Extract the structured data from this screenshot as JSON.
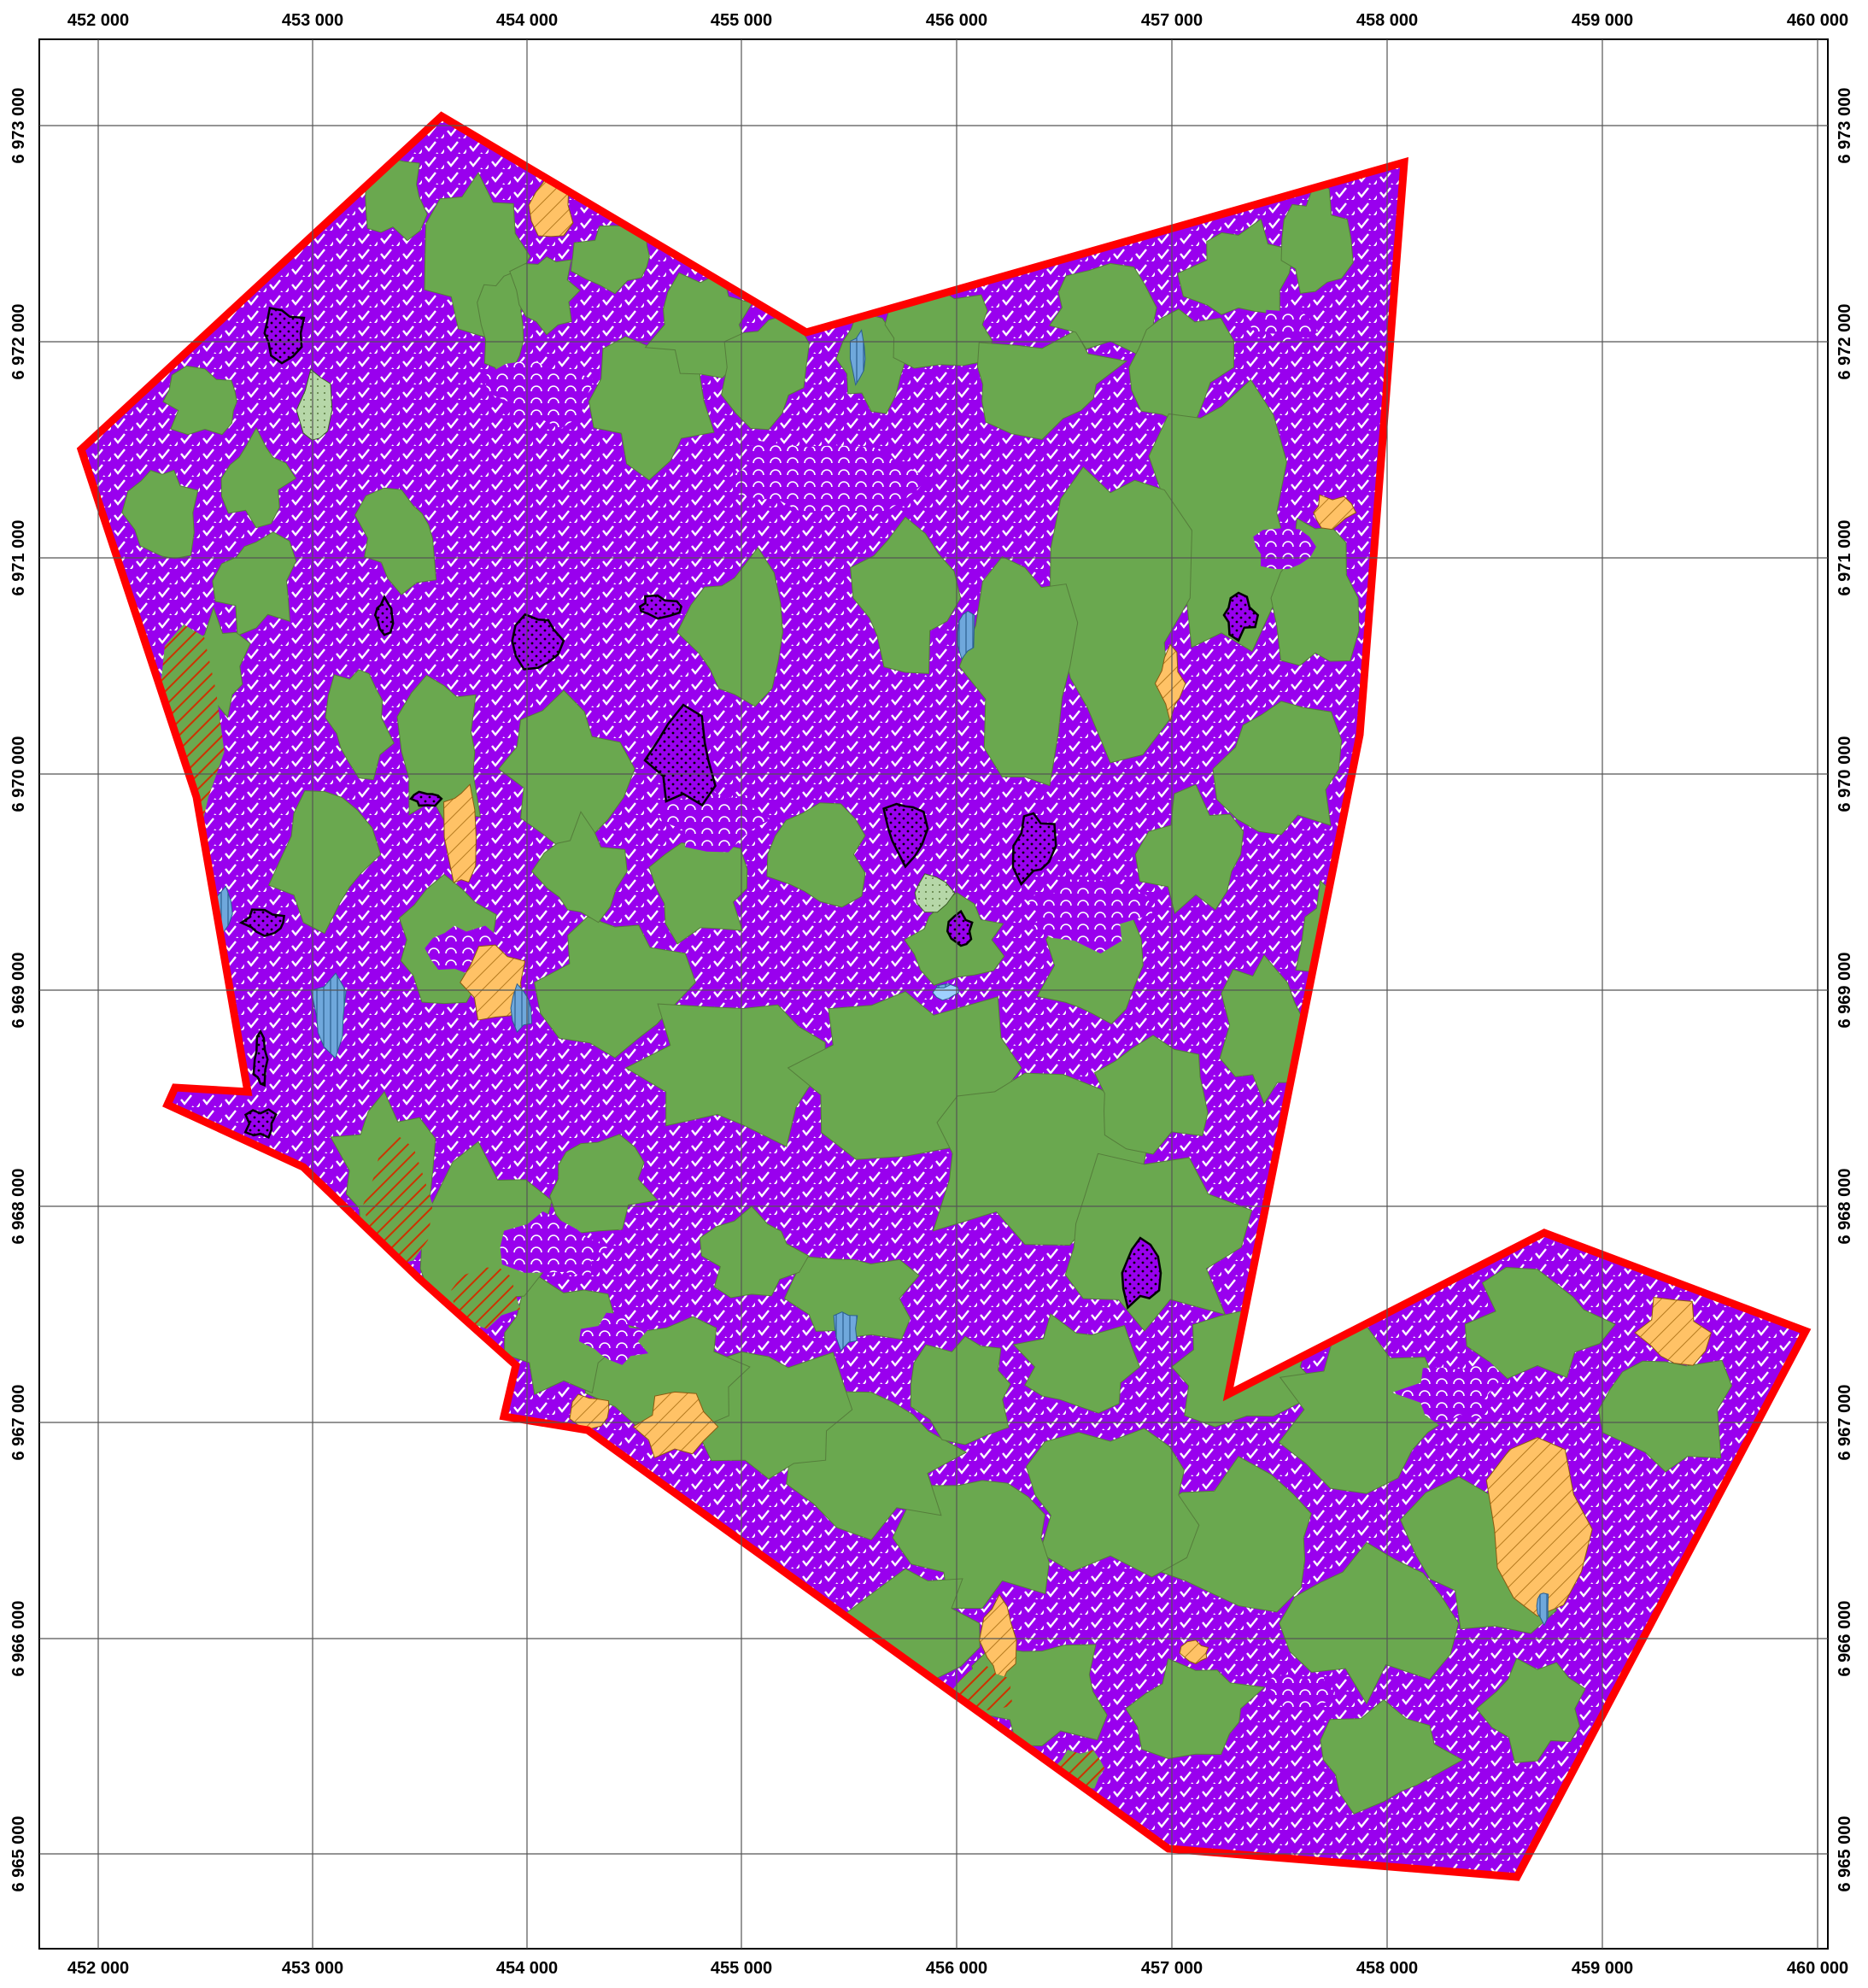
{
  "map": {
    "grid": {
      "x_labels": [
        "452 000",
        "453 000",
        "454 000",
        "455 000",
        "456 000",
        "457 000",
        "458 000",
        "459 000",
        "460 000"
      ],
      "y_labels": [
        "6 973 000",
        "6 972 000",
        "6 971 000",
        "6 970 000",
        "6 969 000",
        "6 968 000",
        "6 967 000",
        "6 966 000",
        "6 965 000"
      ]
    },
    "colors": {
      "boundary": "#ff0000",
      "purple_fill": "#9900ee",
      "green_fill": "#6aa84f",
      "orange_hatch": "#ffc266",
      "red_hatch": "#cc3300",
      "blue_water": "#6fa8dc",
      "light_green": "#b6d7a8",
      "light_blue": "#9fd0ff"
    }
  }
}
